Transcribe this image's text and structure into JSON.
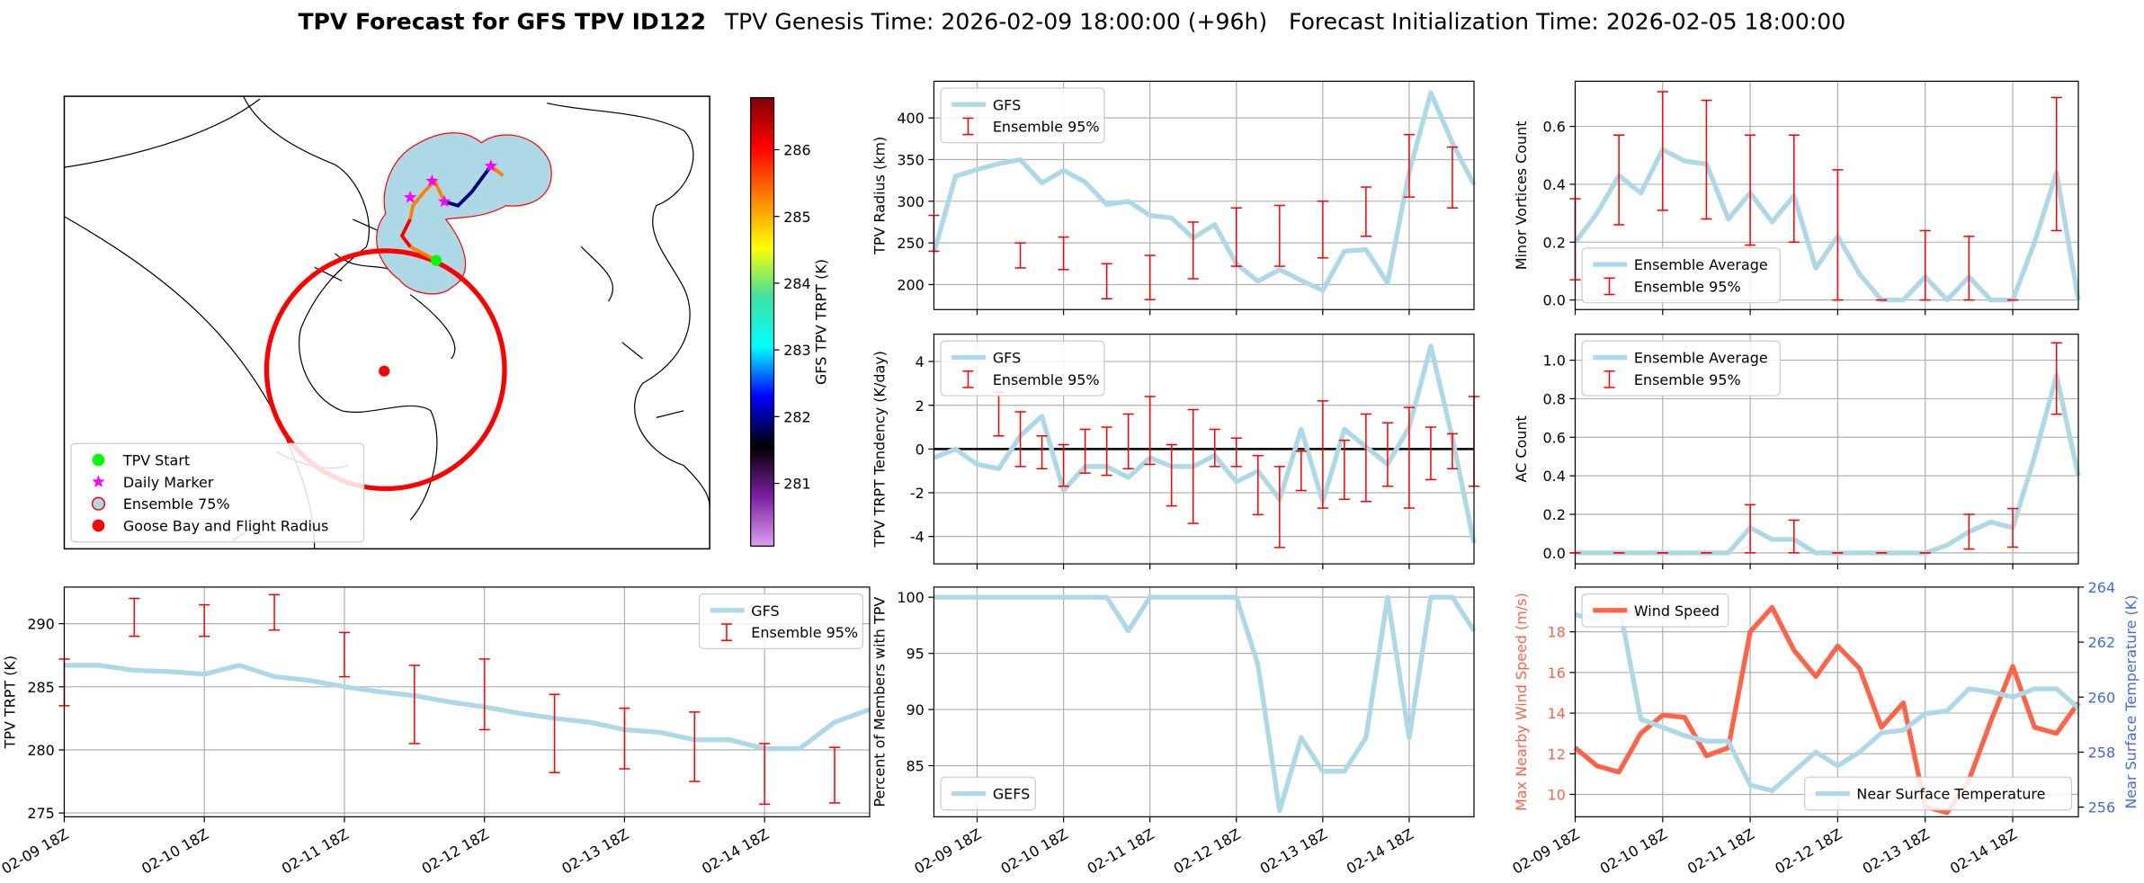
{
  "title": "TPV Forecast for GFS TPV ID122",
  "subtitle": "TPV Genesis Time: 2026-02-09 18:00:00 (+96h)   Forecast Initialization Time: 2026-02-05 18:00:00",
  "chart_data": [
    {
      "type": "map",
      "legend": "lower left",
      "legend_items": [
        {
          "label": "TPV Start",
          "color": "#00ff00",
          "marker": "circle"
        },
        {
          "label": "Daily Marker",
          "color": "#ff00ff",
          "marker": "star"
        },
        {
          "label": "Ensemble 75%",
          "color": "#add8e6",
          "edgecolor": "#ff0000",
          "marker": "circle"
        },
        {
          "label": "Goose Bay and Flight Radius",
          "color": "#ff0000",
          "marker": "circle"
        }
      ],
      "colorbar": {
        "label": "GFS TPV TRPT (K)",
        "clim": [
          280.06,
          286.78
        ],
        "ticks": [
          281,
          282,
          283,
          284,
          285,
          286
        ],
        "colors": [
          "#dda0ee",
          "#7a1fa0",
          "#000000",
          "#0000ff",
          "#00ffff",
          "#40e0a0",
          "#ffff00",
          "#ff8000",
          "#ff0000",
          "#800000"
        ]
      }
    },
    {
      "type": "line",
      "ylabel": "TPV TRPT (K)",
      "legend": "upper right",
      "grid": true,
      "categories": [
        "02-09 18Z",
        null,
        null,
        null,
        "02-10 18Z",
        null,
        null,
        null,
        "02-11 18Z",
        null,
        null,
        null,
        "02-12 18Z",
        null,
        null,
        null,
        "02-13 18Z",
        null,
        null,
        null,
        "02-14 18Z",
        null,
        null,
        null
      ],
      "ylim": [
        274.7,
        292.9
      ],
      "yticks": [
        275,
        280,
        285,
        290
      ],
      "series": [
        {
          "type": "line",
          "name": "GFS",
          "color": "#add8e6",
          "values": [
            286.7,
            286.7,
            286.3,
            286.2,
            286,
            286.7,
            285.8,
            285.5,
            285,
            284.6,
            284.3,
            283.8,
            283.4,
            282.9,
            282.5,
            282.2,
            281.6,
            281.4,
            280.8,
            280.8,
            280.1,
            280.1,
            282.2,
            283.2
          ]
        },
        {
          "type": "errorbar",
          "name": "Ensemble 95%",
          "color": "#ff0000",
          "low": [
            283.5,
            null,
            289,
            null,
            289,
            null,
            289.5,
            null,
            285.8,
            null,
            280.5,
            null,
            281.6,
            null,
            278.2,
            null,
            278.5,
            null,
            277.5,
            null,
            275.7,
            null,
            275.8,
            null
          ],
          "high": [
            287.2,
            null,
            292,
            null,
            291.5,
            null,
            292.3,
            null,
            289.3,
            null,
            286.7,
            null,
            287.2,
            null,
            284.4,
            null,
            283.3,
            null,
            283,
            null,
            280.5,
            null,
            280.2,
            null
          ]
        }
      ]
    },
    {
      "type": "line",
      "ylabel": "TPV Radius (km)",
      "legend": "upper left",
      "grid": true,
      "categories": [
        null,
        null,
        "02-09 18Z",
        null,
        null,
        null,
        "02-10 18Z",
        null,
        null,
        null,
        "02-11 18Z",
        null,
        null,
        null,
        "02-12 18Z",
        null,
        null,
        null,
        "02-13 18Z",
        null,
        null,
        null,
        "02-14 18Z",
        null,
        null,
        null
      ],
      "ylim": [
        170,
        444
      ],
      "yticks": [
        200,
        250,
        300,
        350,
        400
      ],
      "series": [
        {
          "type": "line",
          "name": "GFS",
          "color": "#add8e6",
          "values": [
            238,
            330,
            338,
            345,
            350,
            322,
            337,
            323,
            296,
            300,
            283,
            280,
            256,
            272,
            225,
            204,
            218,
            205,
            193,
            240,
            242,
            202,
            335,
            430,
            370,
            320
          ]
        },
        {
          "type": "errorbar",
          "name": "Ensemble 95%",
          "color": "#ff0000",
          "low": [
            240,
            null,
            null,
            null,
            220,
            null,
            218,
            null,
            183,
            null,
            182,
            null,
            207,
            null,
            222,
            null,
            222,
            null,
            232,
            null,
            258,
            null,
            305,
            null,
            292,
            null
          ],
          "high": [
            283,
            null,
            null,
            null,
            250,
            null,
            257,
            null,
            225,
            null,
            235,
            null,
            275,
            null,
            292,
            null,
            295,
            null,
            300,
            null,
            317,
            null,
            380,
            null,
            365,
            null
          ]
        }
      ]
    },
    {
      "type": "line",
      "ylabel": "TPV TRPT Tendency (K/day)",
      "legend": "upper left",
      "grid": true,
      "zero_line": true,
      "categories": [
        null,
        null,
        "02-09 18Z",
        null,
        null,
        null,
        "02-10 18Z",
        null,
        null,
        null,
        "02-11 18Z",
        null,
        null,
        null,
        "02-12 18Z",
        null,
        null,
        null,
        "02-13 18Z",
        null,
        null,
        null,
        "02-14 18Z",
        null,
        null,
        null
      ],
      "ylim": [
        -5.25,
        5.25
      ],
      "yticks": [
        -4,
        -2,
        0,
        2,
        4
      ],
      "series": [
        {
          "type": "line",
          "name": "GFS",
          "color": "#add8e6",
          "values": [
            -0.4,
            0,
            -0.7,
            -0.9,
            0.6,
            1.5,
            -1.9,
            -0.8,
            -0.8,
            -1.3,
            -0.4,
            -0.8,
            -0.8,
            -0.3,
            -1.5,
            -1.0,
            -2.3,
            0.9,
            -2.4,
            0.9,
            0.1,
            -0.7,
            1.0,
            4.7,
            0.5,
            -4.3
          ]
        },
        {
          "type": "errorbar",
          "name": "Ensemble 95%",
          "color": "#ff0000",
          "low": [
            null,
            null,
            null,
            0.6,
            -0.8,
            -0.9,
            -1.7,
            -1.1,
            -1.2,
            -0.9,
            -0.7,
            -2.6,
            -3.4,
            -0.8,
            -0.8,
            -3.0,
            -4.5,
            -1.9,
            -2.7,
            -2.3,
            -2.4,
            -1.7,
            -2.7,
            -1.4,
            -0.9,
            -1.7
          ],
          "high": [
            null,
            null,
            null,
            2.6,
            1.7,
            0.6,
            0.2,
            0.9,
            1.0,
            1.6,
            2.4,
            0.2,
            1.8,
            0.9,
            0.5,
            -0.3,
            -0.8,
            -0.1,
            2.2,
            0.4,
            1.6,
            1.2,
            1.9,
            1.0,
            0.7,
            2.4
          ]
        }
      ]
    },
    {
      "type": "line",
      "ylabel": "Percent of Members with TPV",
      "legend": "lower left",
      "grid": true,
      "categories": [
        null,
        null,
        "02-09 18Z",
        null,
        null,
        null,
        "02-10 18Z",
        null,
        null,
        null,
        "02-11 18Z",
        null,
        null,
        null,
        "02-12 18Z",
        null,
        null,
        null,
        "02-13 18Z",
        null,
        null,
        null,
        "02-14 18Z",
        null,
        null,
        null
      ],
      "ylim": [
        80.45,
        100.9
      ],
      "yticks": [
        85,
        90,
        95,
        100
      ],
      "series": [
        {
          "type": "line",
          "name": "GEFS",
          "color": "#add8e6",
          "values": [
            100,
            100,
            100,
            100,
            100,
            100,
            100,
            100,
            100,
            97,
            100,
            100,
            100,
            100,
            100,
            94,
            81,
            87.5,
            84.5,
            84.5,
            87.5,
            100,
            87.5,
            100,
            100,
            97
          ]
        }
      ]
    },
    {
      "type": "line",
      "ylabel": "Minor Vortices Count",
      "legend": "lower left",
      "grid": true,
      "categories": [
        "02-09 18Z",
        null,
        null,
        null,
        "02-10 18Z",
        null,
        null,
        null,
        "02-11 18Z",
        null,
        null,
        null,
        "02-12 18Z",
        null,
        null,
        null,
        "02-13 18Z",
        null,
        null,
        null,
        "02-14 18Z",
        null,
        null,
        null
      ],
      "ylim": [
        -0.033,
        0.756
      ],
      "yticks": [
        {
          "value": 0,
          "label": "0.0"
        },
        0.2,
        0.4,
        0.6
      ],
      "series": [
        {
          "type": "line",
          "name": "Ensemble Average",
          "color": "#add8e6",
          "values": [
            0.2,
            0.3,
            0.43,
            0.37,
            0.52,
            0.48,
            0.47,
            0.28,
            0.37,
            0.27,
            0.36,
            0.11,
            0.22,
            0.09,
            0,
            0,
            0.08,
            0,
            0.08,
            0,
            0,
            0.2,
            0.44,
            0
          ]
        },
        {
          "type": "errorbar",
          "name": "Ensemble 95%",
          "color": "#ff0000",
          "low": [
            0.07,
            null,
            0.26,
            null,
            0.31,
            null,
            0.28,
            null,
            0.19,
            null,
            0.2,
            null,
            0,
            null,
            0,
            null,
            0,
            null,
            0,
            null,
            0,
            null,
            0.24,
            null
          ],
          "high": [
            0.35,
            null,
            0.57,
            null,
            0.72,
            null,
            0.69,
            null,
            0.57,
            null,
            0.57,
            null,
            0.45,
            null,
            0,
            null,
            0.24,
            null,
            0.22,
            null,
            0,
            null,
            0.7,
            null
          ]
        }
      ]
    },
    {
      "type": "line",
      "ylabel": "AC Count",
      "legend": "upper left",
      "grid": true,
      "categories": [
        "02-09 18Z",
        null,
        null,
        null,
        "02-10 18Z",
        null,
        null,
        null,
        "02-11 18Z",
        null,
        null,
        null,
        "02-12 18Z",
        null,
        null,
        null,
        "02-13 18Z",
        null,
        null,
        null,
        "02-14 18Z",
        null,
        null,
        null
      ],
      "ylim": [
        -0.057,
        1.135
      ],
      "yticks": [
        {
          "value": 0,
          "label": "0.0"
        },
        0.2,
        0.4,
        0.6,
        0.8,
        {
          "value": 1,
          "label": "1.0"
        }
      ],
      "series": [
        {
          "type": "line",
          "name": "Ensemble Average",
          "color": "#add8e6",
          "values": [
            0,
            0,
            0,
            0,
            0,
            0,
            0,
            0,
            0.13,
            0.07,
            0.07,
            0,
            0,
            0,
            0,
            0,
            0,
            0.04,
            0.11,
            0.16,
            0.13,
            0.5,
            0.92,
            0.4
          ]
        },
        {
          "type": "errorbar",
          "name": "Ensemble 95%",
          "color": "#ff0000",
          "low": [
            0,
            null,
            0,
            null,
            0,
            null,
            0,
            null,
            0,
            null,
            0,
            null,
            0,
            null,
            0,
            null,
            0,
            null,
            0.02,
            null,
            0.03,
            null,
            0.72,
            null
          ],
          "high": [
            0,
            null,
            0,
            null,
            0,
            null,
            0,
            null,
            0.25,
            null,
            0.17,
            null,
            0,
            null,
            0,
            null,
            0,
            null,
            0.2,
            null,
            0.23,
            null,
            1.09,
            null
          ]
        }
      ]
    },
    {
      "type": "line",
      "ylabel": "Max Nearby Wind Speed (m/s)",
      "ylabel_color": "#ff6347",
      "y2label": "Near Surface Temperature (K)",
      "y2label_color": "#4169e1",
      "legend": "upper left",
      "grid": true,
      "categories": [
        "02-09 18Z",
        null,
        null,
        null,
        "02-10 18Z",
        null,
        null,
        null,
        "02-11 18Z",
        null,
        null,
        null,
        "02-12 18Z",
        null,
        null,
        null,
        "02-13 18Z",
        null,
        null,
        null,
        "02-14 18Z",
        null,
        null,
        null
      ],
      "ylim": [
        8.9,
        20.2
      ],
      "yticks": [
        10,
        12,
        14,
        16,
        18
      ],
      "y2lim": [
        255.65,
        264
      ],
      "y2ticks": [
        256,
        258,
        260,
        262,
        264
      ],
      "series": [
        {
          "type": "line",
          "name": "Wind Speed",
          "color": "#ff6347",
          "values": [
            12.3,
            11.4,
            11.1,
            13,
            13.9,
            13.8,
            11.9,
            12.3,
            18,
            19.2,
            17.1,
            15.8,
            17.3,
            16.2,
            13.3,
            14.5,
            9.4,
            9.1,
            10.7,
            13.6,
            16.3,
            13.3,
            13,
            14.5
          ]
        },
        {
          "type": "line",
          "name": "Near Surface Temperature",
          "color": "#add8e6",
          "axis": "y2",
          "legend": "lower right",
          "values": [
            263,
            262.8,
            263.4,
            259.2,
            258.9,
            258.6,
            258.4,
            258.4,
            256.8,
            256.6,
            257.3,
            258,
            257.5,
            258,
            258.7,
            258.8,
            259.4,
            259.5,
            260.3,
            260.2,
            260,
            260.3,
            260.3,
            259.6
          ]
        }
      ]
    }
  ]
}
